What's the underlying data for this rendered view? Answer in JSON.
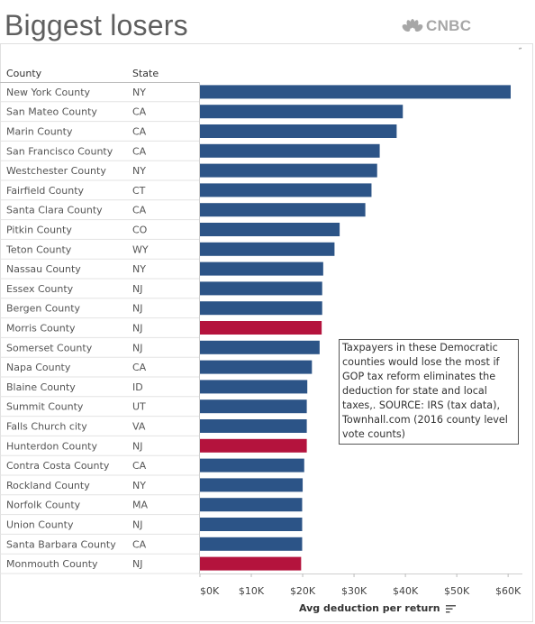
{
  "header": {
    "title": "Biggest losers",
    "brand": "CNBC"
  },
  "table": {
    "col_county": "County",
    "col_state": "State"
  },
  "note": {
    "text": "Taxpayers in these Democratic counties would lose the most if GOP tax reform eliminates the deduction for state and local taxes,. SOURCE: IRS (tax data), Townhall.com (2016 county level vote counts)"
  },
  "colors": {
    "democratic": "#2c5487",
    "republican": "#b4133d",
    "brand_gray": "#a7a7a7"
  },
  "chart_data": {
    "type": "bar",
    "orientation": "horizontal",
    "xlabel": "Avg deduction per return",
    "xlim": [
      0,
      61000
    ],
    "xticks": [
      0,
      10000,
      20000,
      30000,
      40000,
      50000,
      60000
    ],
    "xtick_labels": [
      "$0K",
      "$10K",
      "$20K",
      "$30K",
      "$40K",
      "$50K",
      "$60K"
    ],
    "rows": [
      {
        "county": "New York County",
        "state": "NY",
        "value": 60500,
        "party": "democratic"
      },
      {
        "county": "San Mateo County",
        "state": "CA",
        "value": 39500,
        "party": "democratic"
      },
      {
        "county": "Marin County",
        "state": "CA",
        "value": 38300,
        "party": "democratic"
      },
      {
        "county": "San Francisco County",
        "state": "CA",
        "value": 35000,
        "party": "democratic"
      },
      {
        "county": "Westchester County",
        "state": "NY",
        "value": 34500,
        "party": "democratic"
      },
      {
        "county": "Fairfield County",
        "state": "CT",
        "value": 33400,
        "party": "democratic"
      },
      {
        "county": "Santa Clara County",
        "state": "CA",
        "value": 32200,
        "party": "democratic"
      },
      {
        "county": "Pitkin County",
        "state": "CO",
        "value": 27200,
        "party": "democratic"
      },
      {
        "county": "Teton County",
        "state": "WY",
        "value": 26200,
        "party": "democratic"
      },
      {
        "county": "Nassau County",
        "state": "NY",
        "value": 24000,
        "party": "democratic"
      },
      {
        "county": "Essex County",
        "state": "NJ",
        "value": 23800,
        "party": "democratic"
      },
      {
        "county": "Bergen County",
        "state": "NJ",
        "value": 23800,
        "party": "democratic"
      },
      {
        "county": "Morris County",
        "state": "NJ",
        "value": 23700,
        "party": "republican"
      },
      {
        "county": "Somerset County",
        "state": "NJ",
        "value": 23300,
        "party": "democratic"
      },
      {
        "county": "Napa County",
        "state": "CA",
        "value": 21800,
        "party": "democratic"
      },
      {
        "county": "Blaine County",
        "state": "ID",
        "value": 20900,
        "party": "democratic"
      },
      {
        "county": "Summit County",
        "state": "UT",
        "value": 20800,
        "party": "democratic"
      },
      {
        "county": "Falls Church city",
        "state": "VA",
        "value": 20800,
        "party": "democratic"
      },
      {
        "county": "Hunterdon County",
        "state": "NJ",
        "value": 20800,
        "party": "republican"
      },
      {
        "county": "Contra Costa County",
        "state": "CA",
        "value": 20300,
        "party": "democratic"
      },
      {
        "county": "Rockland County",
        "state": "NY",
        "value": 20000,
        "party": "democratic"
      },
      {
        "county": "Norfolk County",
        "state": "MA",
        "value": 19900,
        "party": "democratic"
      },
      {
        "county": "Union County",
        "state": "NJ",
        "value": 19900,
        "party": "democratic"
      },
      {
        "county": "Santa Barbara County",
        "state": "CA",
        "value": 19900,
        "party": "democratic"
      },
      {
        "county": "Monmouth County",
        "state": "NJ",
        "value": 19700,
        "party": "republican"
      }
    ]
  }
}
